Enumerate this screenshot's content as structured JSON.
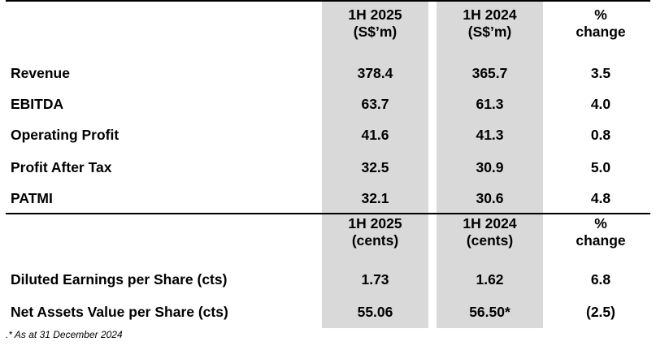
{
  "header1": {
    "col1_line1": "1H 2025",
    "col1_line2": "(S$’m)",
    "col2_line1": "1H 2024",
    "col2_line2": "(S$’m)",
    "col3_line1": "%",
    "col3_line2": "change"
  },
  "rows1": [
    {
      "label": "Revenue",
      "v1": "378.4",
      "v2": "365.7",
      "v3": "3.5"
    },
    {
      "label": "EBITDA",
      "v1": "63.7",
      "v2": "61.3",
      "v3": "4.0"
    },
    {
      "label": "Operating Profit",
      "v1": "41.6",
      "v2": "41.3",
      "v3": "0.8"
    },
    {
      "label": "Profit After Tax",
      "v1": "32.5",
      "v2": "30.9",
      "v3": "5.0"
    },
    {
      "label": "PATMI",
      "v1": "32.1",
      "v2": "30.6",
      "v3": "4.8"
    }
  ],
  "header2": {
    "col1_line1": "1H 2025",
    "col1_line2": "(cents)",
    "col2_line1": "1H 2024",
    "col2_line2": "(cents)",
    "col3_line1": "%",
    "col3_line2": "change"
  },
  "rows2": [
    {
      "label": "Diluted Earnings per Share (cts)",
      "v1": "1.73",
      "v2": "1.62",
      "v3": "6.8"
    },
    {
      "label": "Net Assets Value per Share (cts)",
      "v1": "55.06",
      "v2": "56.50*",
      "v3": "(2.5)"
    }
  ],
  "footnote": ".* As at 31 December 2024"
}
